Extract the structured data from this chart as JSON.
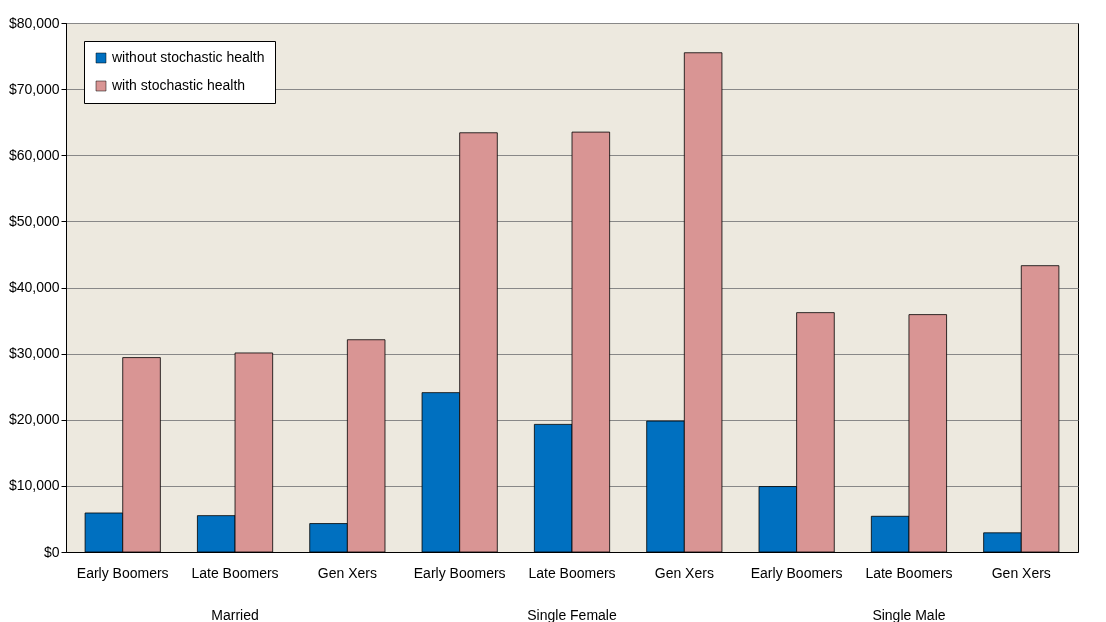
{
  "chart_data": {
    "type": "bar",
    "categories": [
      "Early Boomers",
      "Late Boomers",
      "Gen Xers",
      "Early Boomers",
      "Late Boomers",
      "Gen Xers",
      "Early Boomers",
      "Late Boomers",
      "Gen Xers"
    ],
    "series": [
      {
        "name": "without stochastic health",
        "color": "#0070c0",
        "values": [
          5900,
          5500,
          4300,
          24100,
          19300,
          19800,
          9900,
          5400,
          2900
        ]
      },
      {
        "name": "with stochastic health",
        "color": "#d99594",
        "values": [
          29400,
          30100,
          32100,
          63400,
          63500,
          75500,
          36200,
          35900,
          43300
        ]
      }
    ],
    "annotations": [
      "Married",
      "Single Female",
      "Single Male"
    ],
    "ylim": [
      0,
      80000
    ],
    "yticks": [
      {
        "value": 0,
        "label": "$0"
      },
      {
        "value": 10000,
        "label": "$10,000"
      },
      {
        "value": 20000,
        "label": "$20,000"
      },
      {
        "value": 30000,
        "label": "$30,000"
      },
      {
        "value": 40000,
        "label": "$40,000"
      },
      {
        "value": 50000,
        "label": "$50,000"
      },
      {
        "value": 60000,
        "label": "$60,000"
      },
      {
        "value": 70000,
        "label": "$70,000"
      },
      {
        "value": 80000,
        "label": "$80,000"
      }
    ],
    "grid": "y",
    "legend": "top left"
  }
}
